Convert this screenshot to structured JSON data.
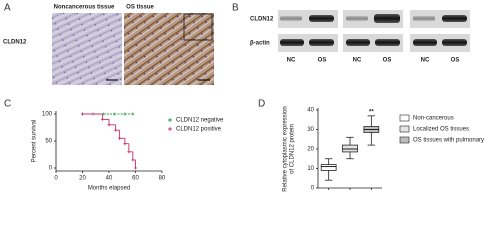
{
  "figure": {
    "a": {
      "panel_label": "A",
      "row_label": "CLDN12",
      "columns": [
        "Noncancerous  tissue",
        "OS tissue"
      ]
    },
    "b": {
      "panel_label": "B",
      "rows": [
        "CLDN12",
        "β-actin"
      ],
      "lanes": [
        "NC",
        "OS",
        "NC",
        "OS",
        "NC",
        "OS"
      ]
    }
  },
  "chart_data": [
    {
      "type": "survival",
      "panel_label": "C",
      "xlabel": "Months elapsed",
      "ylabel": "Percent survival",
      "xlim": [
        0,
        80
      ],
      "xticks": [
        0,
        20,
        40,
        60,
        80
      ],
      "ylim": [
        0,
        100
      ],
      "yticks": [
        0,
        50,
        100
      ],
      "legend": "right",
      "series": [
        {
          "name": "CLDN12 negative",
          "color": "#2e9e3e",
          "x": [
            20,
            28,
            36,
            44,
            52,
            58
          ],
          "values": [
            100,
            100,
            100,
            100,
            100,
            100
          ]
        },
        {
          "name": "CLDN12 positive",
          "color": "#c8306a",
          "x": [
            20,
            35,
            40,
            45,
            48,
            52,
            55,
            58,
            60
          ],
          "values": [
            100,
            90,
            80,
            70,
            55,
            45,
            30,
            15,
            0
          ]
        }
      ]
    },
    {
      "type": "box",
      "panel_label": "D",
      "ylabel": [
        "Relative cytoplasmic expression",
        "of CLDN12 protein"
      ],
      "ylim": [
        0,
        40
      ],
      "yticks": [
        0,
        10,
        20,
        30,
        40
      ],
      "legend": "right",
      "series": [
        {
          "name": "Non-cancerous",
          "color": "#ffffff",
          "min": 4,
          "q1": 9,
          "median": 11,
          "q3": 12,
          "max": 15
        },
        {
          "name": "Localized OS tissues",
          "color": "#e4e4e4",
          "min": 15,
          "q1": 18.5,
          "median": 20,
          "q3": 22,
          "max": 26
        },
        {
          "name": "OS tissues with pulmonary",
          "color": "#bdbdbd",
          "min": 22,
          "q1": 28.5,
          "median": 30,
          "q3": 31.5,
          "max": 37
        }
      ],
      "annotations": [
        {
          "text": "**",
          "series": 2,
          "y": 39
        }
      ]
    }
  ]
}
